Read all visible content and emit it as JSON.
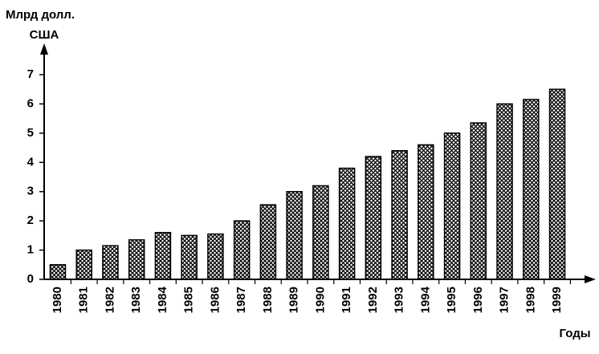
{
  "chart_data": {
    "type": "bar",
    "y_label_lines": [
      "Млрд долл.",
      "США"
    ],
    "x_label": "Годы",
    "categories": [
      "1980",
      "1981",
      "1982",
      "1983",
      "1984",
      "1985",
      "1986",
      "1987",
      "1988",
      "1989",
      "1990",
      "1991",
      "1992",
      "1993",
      "1994",
      "1995",
      "1996",
      "1997",
      "1998",
      "1999"
    ],
    "values": [
      0.5,
      1.0,
      1.15,
      1.35,
      1.6,
      1.5,
      1.55,
      2.0,
      2.55,
      3.0,
      3.2,
      3.8,
      4.2,
      4.4,
      4.6,
      5.0,
      5.35,
      6.0,
      6.15,
      6.5
    ],
    "color": "#000000",
    "ylim": [
      0,
      8
    ],
    "yticks": [
      0,
      1,
      2,
      3,
      4,
      5,
      6,
      7
    ],
    "grid": false
  }
}
